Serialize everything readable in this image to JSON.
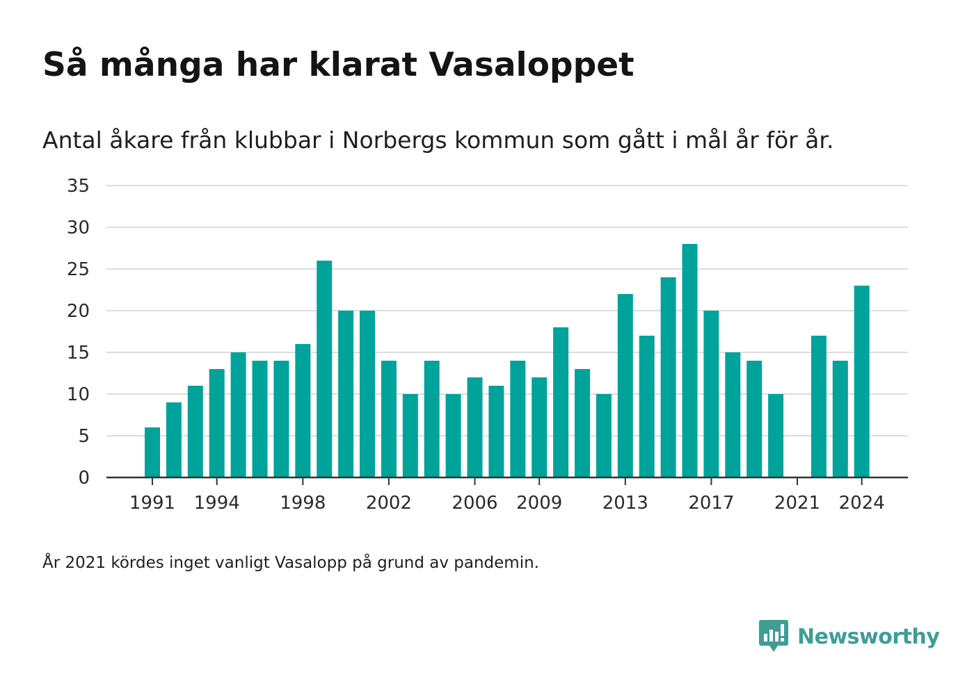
{
  "header": {
    "title": "Så många har klarat Vasaloppet",
    "subtitle": "Antal åkare från klubbar i Norbergs kommun som gått i mål år för år."
  },
  "footer": {
    "note": "År 2021 kördes inget vanligt Vasalopp på grund av pandemin.",
    "brand": "Newsworthy"
  },
  "colors": {
    "bar": "#00a39a",
    "grid": "#dddddd",
    "axis": "#333333",
    "brand": "#3f9d94"
  },
  "chart_data": {
    "type": "bar",
    "x": [
      1991,
      1992,
      1993,
      1994,
      1995,
      1996,
      1997,
      1998,
      1999,
      2000,
      2001,
      2002,
      2003,
      2004,
      2005,
      2006,
      2007,
      2008,
      2009,
      2010,
      2011,
      2012,
      2013,
      2014,
      2015,
      2016,
      2017,
      2018,
      2019,
      2020,
      2021,
      2022,
      2023,
      2024
    ],
    "values": [
      6,
      9,
      11,
      13,
      15,
      14,
      14,
      16,
      26,
      20,
      20,
      14,
      10,
      14,
      10,
      12,
      11,
      14,
      12,
      18,
      13,
      10,
      22,
      17,
      24,
      28,
      20,
      15,
      14,
      10,
      null,
      17,
      14,
      23
    ],
    "xticks": [
      1991,
      1994,
      1998,
      2002,
      2006,
      2009,
      2013,
      2017,
      2021,
      2024
    ],
    "xtick_labels": [
      "1991",
      "1994",
      "1998",
      "2002",
      "2006",
      "2009",
      "2013",
      "2017",
      "2021",
      "2024"
    ],
    "ylim": [
      0,
      35
    ],
    "yticks": [
      0,
      5,
      10,
      15,
      20,
      25,
      30,
      35
    ],
    "ytick_labels": [
      "0",
      "5",
      "10",
      "15",
      "20",
      "25",
      "30",
      "35"
    ],
    "xlabel": "",
    "ylabel": "",
    "grid": true,
    "legend": "none"
  }
}
